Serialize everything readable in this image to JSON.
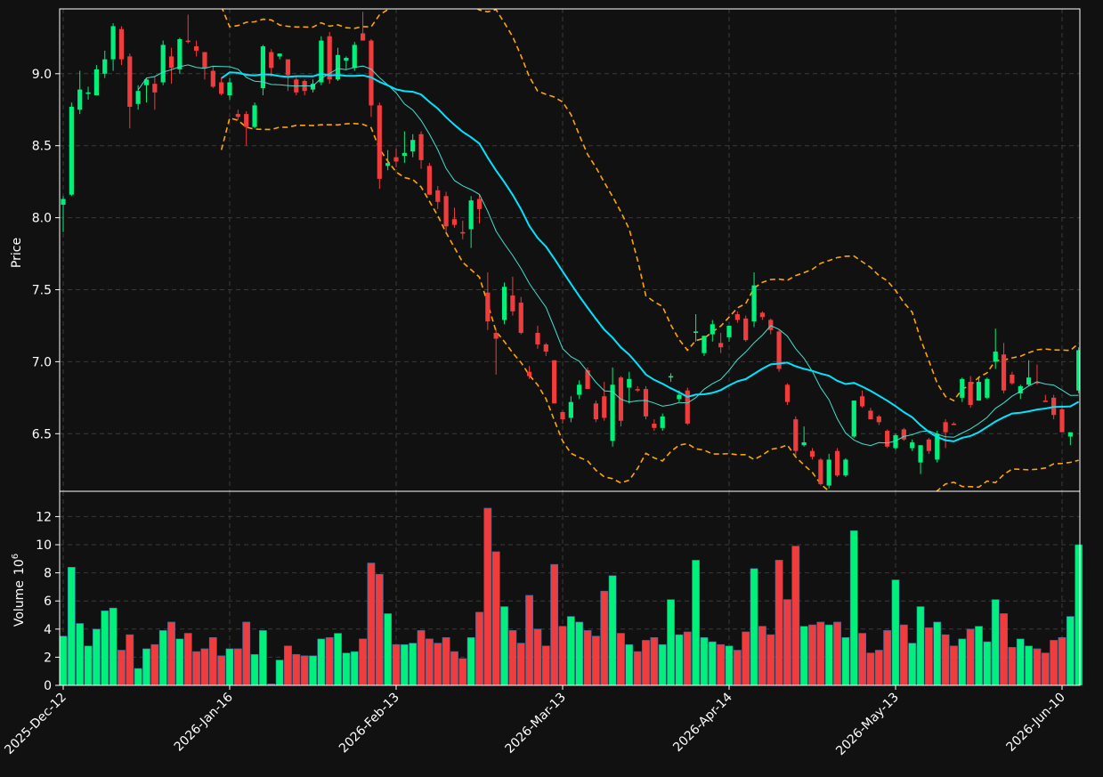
{
  "chart_data": {
    "type": "candlestick",
    "colors": {
      "background": "#111111",
      "up": "#00f07c",
      "down": "#f03c3c",
      "ma_fast": "#40e0d0",
      "ma_slow": "#00e5ff",
      "bands": "#ffa500",
      "grid": "#3a3a3a",
      "text": "#ffffff"
    },
    "price_panel": {
      "ylabel": "Price",
      "ylim": [
        6.1,
        9.45
      ],
      "yticks": [
        "6.5",
        "7.0",
        "7.5",
        "8.0",
        "8.5",
        "9.0"
      ],
      "ytick_values": [
        6.5,
        7.0,
        7.5,
        8.0,
        8.5,
        9.0
      ]
    },
    "volume_panel": {
      "ylabel": "Volume",
      "ylabel_multiplier": "10",
      "ylabel_exponent": "6",
      "ylim": [
        0,
        13.8
      ],
      "yticks": [
        "0",
        "2",
        "4",
        "6",
        "8",
        "10",
        "12"
      ],
      "ytick_values": [
        0,
        2,
        4,
        6,
        8,
        10,
        12
      ]
    },
    "xticks": [
      {
        "index": 0,
        "label": "2025-Dec-12"
      },
      {
        "index": 20,
        "label": "2026-Jan-16"
      },
      {
        "index": 40,
        "label": "2026-Feb-13"
      },
      {
        "index": 60,
        "label": "2026-Mar-13"
      },
      {
        "index": 80,
        "label": "2026-Apr-14"
      },
      {
        "index": 100,
        "label": "2026-May-13"
      },
      {
        "index": 120,
        "label": "2026-Jun-10"
      }
    ],
    "bands_start_index": 19,
    "ma_fast_start_index": 9,
    "ohlc": [
      [
        8.09,
        8.15,
        7.9,
        8.13
      ],
      [
        8.16,
        8.8,
        8.15,
        8.77
      ],
      [
        8.75,
        9.02,
        8.72,
        8.89
      ],
      [
        8.86,
        8.91,
        8.82,
        8.87
      ],
      [
        8.85,
        9.06,
        8.85,
        9.03
      ],
      [
        9.0,
        9.16,
        8.97,
        9.1
      ],
      [
        9.1,
        9.35,
        9.02,
        9.33
      ],
      [
        9.31,
        9.33,
        9.06,
        9.1
      ],
      [
        9.12,
        9.14,
        8.62,
        8.77
      ],
      [
        8.79,
        8.92,
        8.75,
        8.88
      ],
      [
        8.92,
        8.97,
        8.8,
        8.96
      ],
      [
        8.93,
        8.98,
        8.75,
        8.87
      ],
      [
        8.94,
        9.23,
        8.92,
        9.2
      ],
      [
        9.12,
        9.18,
        8.93,
        9.04
      ],
      [
        9.03,
        9.25,
        9.0,
        9.24
      ],
      [
        9.23,
        9.41,
        9.21,
        9.22
      ],
      [
        9.19,
        9.23,
        9.12,
        9.16
      ],
      [
        9.15,
        9.15,
        8.96,
        9.04
      ],
      [
        9.02,
        9.05,
        8.9,
        8.91
      ],
      [
        8.94,
        8.97,
        8.85,
        8.86
      ],
      [
        8.85,
        8.97,
        8.82,
        8.94
      ],
      [
        8.72,
        8.75,
        8.68,
        8.7
      ],
      [
        8.72,
        8.74,
        8.5,
        8.63
      ],
      [
        8.63,
        8.8,
        8.62,
        8.78
      ],
      [
        8.9,
        9.2,
        8.85,
        9.19
      ],
      [
        9.15,
        9.17,
        8.98,
        9.04
      ],
      [
        9.12,
        9.14,
        9.1,
        9.14
      ],
      [
        9.1,
        9.1,
        8.88,
        8.99
      ],
      [
        8.96,
        8.98,
        8.85,
        8.87
      ],
      [
        8.95,
        8.96,
        8.85,
        8.88
      ],
      [
        8.89,
        8.96,
        8.87,
        8.93
      ],
      [
        8.94,
        9.26,
        8.92,
        9.23
      ],
      [
        9.26,
        9.29,
        8.93,
        8.96
      ],
      [
        8.96,
        9.18,
        8.95,
        9.13
      ],
      [
        9.09,
        9.12,
        9.03,
        9.11
      ],
      [
        9.04,
        9.22,
        9.02,
        9.2
      ],
      [
        9.28,
        9.43,
        9.24,
        9.23
      ],
      [
        9.23,
        9.24,
        8.7,
        8.78
      ],
      [
        8.78,
        8.8,
        8.2,
        8.27
      ],
      [
        8.36,
        8.47,
        8.33,
        8.38
      ],
      [
        8.42,
        8.48,
        8.35,
        8.39
      ],
      [
        8.43,
        8.6,
        8.38,
        8.45
      ],
      [
        8.46,
        8.58,
        8.42,
        8.54
      ],
      [
        8.58,
        8.6,
        8.34,
        8.4
      ],
      [
        8.36,
        8.38,
        8.16,
        8.16
      ],
      [
        8.19,
        8.22,
        8.06,
        8.11
      ],
      [
        8.15,
        8.18,
        7.9,
        7.94
      ],
      [
        7.99,
        8.07,
        7.93,
        7.95
      ],
      [
        7.9,
        7.98,
        7.85,
        7.89
      ],
      [
        7.92,
        8.15,
        7.79,
        8.12
      ],
      [
        8.13,
        8.16,
        7.96,
        8.06
      ],
      [
        7.48,
        7.62,
        7.22,
        7.28
      ],
      [
        7.2,
        7.23,
        6.91,
        7.16
      ],
      [
        7.29,
        7.55,
        7.26,
        7.52
      ],
      [
        7.46,
        7.59,
        7.32,
        7.35
      ],
      [
        7.41,
        7.45,
        7.19,
        7.2
      ],
      [
        6.93,
        6.97,
        6.88,
        6.9
      ],
      [
        7.2,
        7.25,
        7.09,
        7.12
      ],
      [
        7.12,
        7.13,
        7.04,
        7.07
      ],
      [
        7.01,
        7.01,
        6.71,
        6.71
      ],
      [
        6.65,
        6.66,
        6.57,
        6.6
      ],
      [
        6.61,
        6.76,
        6.58,
        6.72
      ],
      [
        6.77,
        6.87,
        6.74,
        6.84
      ],
      [
        6.94,
        6.96,
        6.81,
        6.81
      ],
      [
        6.71,
        6.73,
        6.58,
        6.6
      ],
      [
        6.76,
        6.86,
        6.59,
        6.61
      ],
      [
        6.45,
        6.96,
        6.41,
        6.84
      ],
      [
        6.89,
        6.9,
        6.55,
        6.59
      ],
      [
        6.82,
        6.93,
        6.71,
        6.88
      ],
      [
        6.81,
        6.83,
        6.79,
        6.8
      ],
      [
        6.81,
        6.83,
        6.6,
        6.62
      ],
      [
        6.57,
        6.6,
        6.52,
        6.54
      ],
      [
        6.54,
        6.64,
        6.52,
        6.62
      ],
      [
        6.89,
        6.92,
        6.86,
        6.9
      ],
      [
        6.74,
        6.8,
        6.72,
        6.77
      ],
      [
        6.8,
        6.82,
        6.56,
        6.57
      ],
      [
        7.2,
        7.33,
        7.14,
        7.21
      ],
      [
        7.06,
        7.18,
        7.04,
        7.18
      ],
      [
        7.19,
        7.29,
        7.14,
        7.26
      ],
      [
        7.13,
        7.2,
        7.06,
        7.1
      ],
      [
        7.17,
        7.24,
        7.14,
        7.25
      ],
      [
        7.33,
        7.35,
        7.27,
        7.29
      ],
      [
        7.3,
        7.32,
        7.14,
        7.15
      ],
      [
        7.28,
        7.62,
        7.24,
        7.53
      ],
      [
        7.34,
        7.35,
        7.29,
        7.31
      ],
      [
        7.29,
        7.3,
        7.19,
        7.22
      ],
      [
        7.21,
        7.22,
        6.93,
        6.95
      ],
      [
        6.84,
        6.85,
        6.7,
        6.72
      ],
      [
        6.6,
        6.62,
        6.35,
        6.38
      ],
      [
        6.42,
        6.55,
        6.41,
        6.44
      ],
      [
        6.38,
        6.4,
        6.32,
        6.34
      ],
      [
        6.32,
        6.33,
        6.14,
        6.15
      ],
      [
        6.14,
        6.36,
        6.12,
        6.32
      ],
      [
        6.38,
        6.4,
        6.2,
        6.21
      ],
      [
        6.21,
        6.33,
        6.2,
        6.32
      ],
      [
        6.48,
        6.73,
        6.47,
        6.73
      ],
      [
        6.76,
        6.8,
        6.68,
        6.69
      ],
      [
        6.66,
        6.68,
        6.6,
        6.6
      ],
      [
        6.62,
        6.63,
        6.56,
        6.58
      ],
      [
        6.52,
        6.53,
        6.4,
        6.41
      ],
      [
        6.4,
        6.5,
        6.39,
        6.49
      ],
      [
        6.53,
        6.54,
        6.45,
        6.46
      ],
      [
        6.4,
        6.46,
        6.38,
        6.44
      ],
      [
        6.3,
        6.42,
        6.22,
        6.42
      ],
      [
        6.46,
        6.47,
        6.36,
        6.38
      ],
      [
        6.32,
        6.52,
        6.3,
        6.5
      ],
      [
        6.58,
        6.6,
        6.4,
        6.51
      ],
      [
        6.57,
        6.58,
        6.56,
        6.56
      ],
      [
        6.75,
        6.89,
        6.72,
        6.88
      ],
      [
        6.86,
        6.9,
        6.68,
        6.7
      ],
      [
        6.73,
        6.89,
        6.73,
        6.86
      ],
      [
        6.75,
        6.89,
        6.74,
        6.88
      ],
      [
        7.0,
        7.23,
        6.95,
        7.07
      ],
      [
        7.05,
        7.13,
        6.78,
        6.8
      ],
      [
        6.91,
        6.93,
        6.84,
        6.85
      ],
      [
        6.78,
        6.84,
        6.74,
        6.83
      ],
      [
        6.84,
        7.01,
        6.83,
        6.89
      ],
      [
        6.86,
        6.98,
        6.84,
        6.85
      ],
      [
        6.73,
        6.77,
        6.72,
        6.72
      ],
      [
        6.75,
        6.77,
        6.6,
        6.63
      ],
      [
        6.67,
        6.7,
        6.51,
        6.51
      ],
      [
        6.48,
        6.51,
        6.42,
        6.51
      ],
      [
        6.8,
        7.1,
        6.78,
        7.08
      ]
    ],
    "volume": [
      3.5,
      8.4,
      4.4,
      2.8,
      4.0,
      5.3,
      5.5,
      2.5,
      3.6,
      1.2,
      2.6,
      2.9,
      3.9,
      4.5,
      3.3,
      3.7,
      2.4,
      2.6,
      3.4,
      2.1,
      2.6,
      2.6,
      4.5,
      2.2,
      3.9,
      0.1,
      1.8,
      2.8,
      2.2,
      2.1,
      2.1,
      3.3,
      3.4,
      3.7,
      2.3,
      2.4,
      3.3,
      8.7,
      7.9,
      5.1,
      2.9,
      2.9,
      3.0,
      3.9,
      3.3,
      3.0,
      3.4,
      2.4,
      1.9,
      3.4,
      5.2,
      12.6,
      9.5,
      5.6,
      3.9,
      3.0,
      6.4,
      4.0,
      2.8,
      8.6,
      4.2,
      4.9,
      4.5,
      3.9,
      3.5,
      6.7,
      7.8,
      3.7,
      2.9,
      2.4,
      3.2,
      3.4,
      2.9,
      6.1,
      3.6,
      3.8,
      8.9,
      3.4,
      3.1,
      2.9,
      2.8,
      2.5,
      3.8,
      8.3,
      4.2,
      3.6,
      8.9,
      6.1,
      9.9,
      4.2,
      4.3,
      4.5,
      4.3,
      4.5,
      3.4,
      11.0,
      3.7,
      2.3,
      2.5,
      3.9,
      7.5,
      4.3,
      3.0,
      5.6,
      4.1,
      4.5,
      3.6,
      2.8,
      3.3,
      4.0,
      4.2,
      3.1,
      6.1,
      5.1,
      2.7,
      3.3,
      2.8,
      2.6,
      2.3,
      3.2,
      3.4,
      4.9,
      10.0
    ]
  }
}
